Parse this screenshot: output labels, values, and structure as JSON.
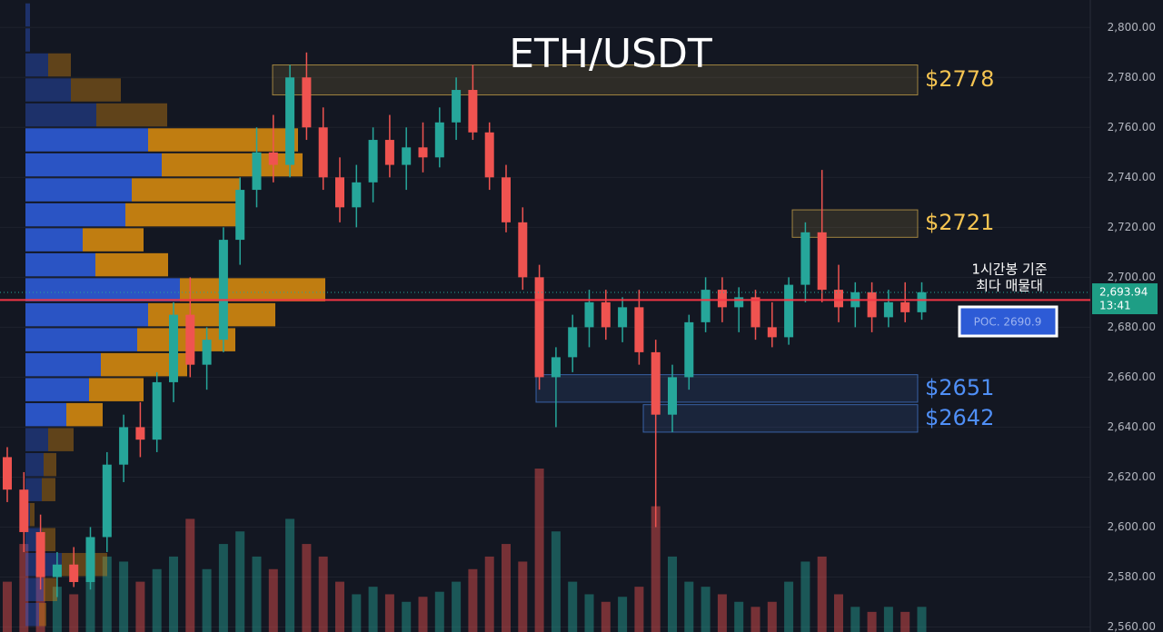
{
  "chart_data": {
    "type": "candlestick",
    "title": "ETH/USDT",
    "open": [
      2628,
      2615,
      2598,
      2580,
      2585,
      2578,
      2596,
      2625,
      2640,
      2635,
      2658,
      2685,
      2665,
      2675,
      2715,
      2735,
      2750,
      2745,
      2780,
      2760,
      2740,
      2728,
      2738,
      2755,
      2745,
      2752,
      2748,
      2762,
      2775,
      2758,
      2740,
      2722,
      2700,
      2660,
      2668,
      2680,
      2690,
      2680,
      2688,
      2670,
      2645,
      2660,
      2682,
      2695,
      2688,
      2692,
      2680,
      2676,
      2697,
      2718,
      2695,
      2688,
      2694,
      2684,
      2690,
      2686
    ],
    "high": [
      2632,
      2622,
      2605,
      2590,
      2592,
      2600,
      2630,
      2645,
      2650,
      2662,
      2690,
      2700,
      2680,
      2720,
      2740,
      2760,
      2765,
      2785,
      2790,
      2768,
      2748,
      2745,
      2760,
      2765,
      2760,
      2762,
      2768,
      2780,
      2785,
      2762,
      2745,
      2728,
      2705,
      2672,
      2685,
      2695,
      2695,
      2692,
      2695,
      2675,
      2665,
      2685,
      2700,
      2700,
      2696,
      2695,
      2690,
      2700,
      2722,
      2743,
      2705,
      2698,
      2698,
      2695,
      2698,
      2698
    ],
    "low": [
      2610,
      2590,
      2575,
      2572,
      2576,
      2575,
      2590,
      2618,
      2628,
      2630,
      2650,
      2660,
      2655,
      2670,
      2705,
      2728,
      2738,
      2740,
      2755,
      2735,
      2722,
      2720,
      2730,
      2740,
      2735,
      2742,
      2744,
      2755,
      2755,
      2735,
      2718,
      2695,
      2655,
      2640,
      2662,
      2672,
      2675,
      2674,
      2665,
      2600,
      2638,
      2655,
      2678,
      2682,
      2678,
      2675,
      2672,
      2673,
      2690,
      2690,
      2682,
      2680,
      2678,
      2680,
      2682,
      2683
    ],
    "close": [
      2615,
      2598,
      2580,
      2585,
      2578,
      2596,
      2625,
      2640,
      2635,
      2658,
      2685,
      2665,
      2675,
      2715,
      2735,
      2750,
      2745,
      2780,
      2760,
      2740,
      2728,
      2738,
      2755,
      2745,
      2752,
      2748,
      2762,
      2775,
      2758,
      2740,
      2722,
      2700,
      2660,
      2668,
      2680,
      2690,
      2680,
      2688,
      2670,
      2645,
      2660,
      2682,
      2695,
      2688,
      2692,
      2680,
      2676,
      2697,
      2718,
      2695,
      2688,
      2694,
      2684,
      2690,
      2686,
      2694
    ],
    "volume": [
      20,
      35,
      25,
      18,
      15,
      22,
      30,
      28,
      20,
      25,
      30,
      45,
      25,
      35,
      40,
      30,
      25,
      45,
      35,
      30,
      20,
      15,
      18,
      15,
      12,
      14,
      16,
      20,
      25,
      30,
      35,
      28,
      65,
      40,
      20,
      15,
      12,
      14,
      18,
      50,
      30,
      20,
      18,
      15,
      12,
      10,
      12,
      20,
      28,
      30,
      15,
      10,
      8,
      10,
      8,
      10
    ],
    "up_color": "#26a69a",
    "down_color": "#ef5350",
    "ylim": [
      2558,
      2811
    ],
    "yticks": [
      {
        "value": 2560,
        "label": "2,560.00"
      },
      {
        "value": 2580,
        "label": "2,580.00"
      },
      {
        "value": 2600,
        "label": "2,600.00"
      },
      {
        "value": 2620,
        "label": "2,620.00"
      },
      {
        "value": 2640,
        "label": "2,640.00"
      },
      {
        "value": 2660,
        "label": "2,660.00"
      },
      {
        "value": 2680,
        "label": "2,680.00"
      },
      {
        "value": 2700,
        "label": "2,700.00"
      },
      {
        "value": 2720,
        "label": "2,720.00"
      },
      {
        "value": 2740,
        "label": "2,740.00"
      },
      {
        "value": 2760,
        "label": "2,760.00"
      },
      {
        "value": 2780,
        "label": "2,780.00"
      },
      {
        "value": 2800,
        "label": "2,800.00"
      }
    ],
    "volume_profile": {
      "levels": [
        2805,
        2795,
        2785,
        2775,
        2765,
        2755,
        2745,
        2735,
        2725,
        2715,
        2705,
        2695,
        2685,
        2675,
        2665,
        2655,
        2645,
        2635,
        2625,
        2615,
        2605,
        2595,
        2585,
        2575,
        2565
      ],
      "buy": [
        5,
        5,
        25,
        50,
        78,
        135,
        150,
        117,
        110,
        63,
        77,
        170,
        135,
        123,
        83,
        70,
        45,
        25,
        20,
        18,
        5,
        18,
        40,
        20,
        15
      ],
      "sell": [
        0,
        0,
        25,
        55,
        78,
        165,
        155,
        120,
        125,
        67,
        80,
        160,
        140,
        108,
        95,
        60,
        40,
        28,
        14,
        15,
        5,
        15,
        50,
        15,
        8
      ],
      "buy_color": "#2d5bd6",
      "sell_color": "#d4880f",
      "value_area": [
        2640,
        2760
      ]
    },
    "zones": [
      {
        "label": "$2778",
        "low": 2773,
        "high": 2785,
        "color": "#f5c451"
      },
      {
        "label": "$2721",
        "low": 2716,
        "high": 2727,
        "color": "#f5c451"
      },
      {
        "label": "$2651",
        "low": 2650,
        "high": 2661,
        "color": "#4f8ff7"
      },
      {
        "label": "$2642",
        "low": 2638,
        "high": 2649,
        "color": "#4f8ff7"
      }
    ],
    "poc": {
      "value": 2690.9,
      "label": "POC. 2690.9",
      "note": [
        "1시간봉 기준",
        "최다 매물대"
      ]
    },
    "last_price": {
      "value": 2693.94,
      "label": "2,693.94",
      "countdown": "13:41"
    }
  }
}
